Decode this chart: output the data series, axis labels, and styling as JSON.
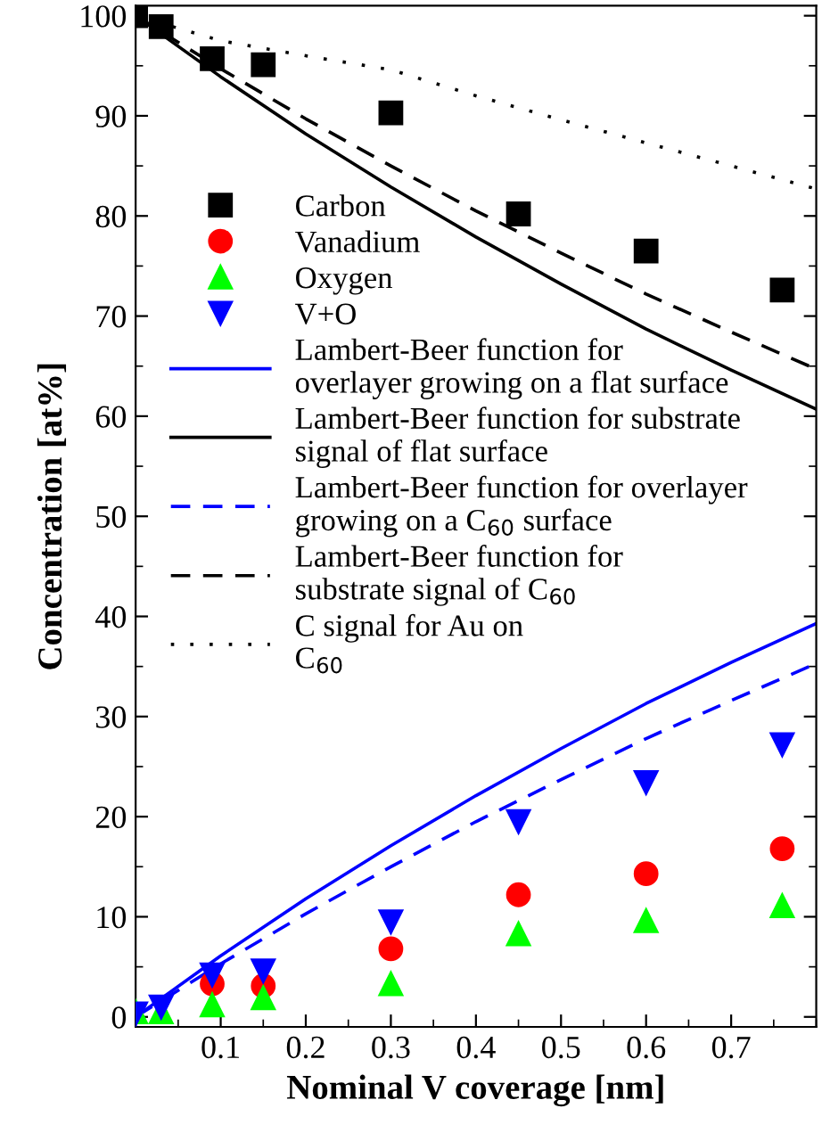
{
  "chart_data": {
    "type": "scatter",
    "xlabel": "Nominal V coverage [nm]",
    "ylabel": "Concentration [at%]",
    "xlim": [
      0,
      0.8
    ],
    "xticks": [
      {
        "value": 0,
        "label": null
      },
      0.1,
      0.2,
      0.3,
      0.4,
      0.5,
      0.6,
      0.7
    ],
    "ylim": [
      -1,
      101
    ],
    "yticks": [
      0,
      10,
      20,
      30,
      40,
      50,
      60,
      70,
      80,
      90,
      100
    ],
    "grid": false,
    "legend": "center left",
    "x": [
      0,
      0.03,
      0.09,
      0.15,
      0.3,
      0.45,
      0.6,
      0.76
    ],
    "series": [
      {
        "name": "Carbon",
        "color": "#000000",
        "marker": "square",
        "values": [
          100,
          98.9,
          95.7,
          95.1,
          90.3,
          80.2,
          76.5,
          72.6
        ]
      },
      {
        "name": "Vanadium",
        "color": "#ff0000",
        "marker": "circle",
        "values": [
          null,
          null,
          3.3,
          3.1,
          6.8,
          12.2,
          14.3,
          16.8
        ]
      },
      {
        "name": "Oxygen",
        "color": "#00ff00",
        "marker": "triangle",
        "values": [
          0.5,
          0.5,
          1.2,
          1.9,
          3.3,
          8.3,
          9.6,
          11.1
        ]
      },
      {
        "name": "V+O",
        "color": "#0000ff",
        "marker": "triangle_down",
        "values": [
          0.3,
          1.0,
          4.2,
          4.6,
          9.5,
          19.5,
          23.4,
          27.2
        ]
      },
      {
        "name": "Lambert-Beer function for\noverlayer growing on a flat surface",
        "type": "line",
        "color": "#0000ff",
        "line_style": "solid",
        "x": [
          0,
          0.1,
          0.2,
          0.3,
          0.4,
          0.5,
          0.6,
          0.7,
          0.8
        ],
        "values": [
          0,
          6.1,
          11.8,
          17.1,
          22.1,
          26.8,
          31.3,
          35.4,
          39.3
        ]
      },
      {
        "name": "Lambert-Beer function for substrate\nsignal of flat surface",
        "type": "line",
        "color": "#000000",
        "line_style": "solid",
        "x": [
          0,
          0.1,
          0.2,
          0.3,
          0.4,
          0.5,
          0.6,
          0.7,
          0.8
        ],
        "values": [
          100,
          93.9,
          88.2,
          82.9,
          77.9,
          73.2,
          68.7,
          64.6,
          60.7
        ]
      },
      {
        "name": "Lambert-Beer function for overlayer\ngrowing on a C$_{60}$ surface",
        "type": "line",
        "color": "#0000ff",
        "line_style": "dashed",
        "x": [
          0,
          0.1,
          0.2,
          0.3,
          0.4,
          0.5,
          0.6,
          0.7,
          0.8
        ],
        "values": [
          0,
          5.3,
          10.3,
          15.0,
          19.5,
          23.7,
          27.8,
          31.6,
          35.3
        ]
      },
      {
        "name": "Lambert-Beer function for\nsubstrate signal of C$_{60}$",
        "type": "line",
        "color": "#000000",
        "line_style": "dashed",
        "x": [
          0,
          0.1,
          0.2,
          0.3,
          0.4,
          0.5,
          0.6,
          0.7,
          0.8
        ],
        "values": [
          100,
          94.7,
          89.7,
          85.0,
          80.5,
          76.3,
          72.2,
          68.4,
          64.7
        ]
      },
      {
        "name": "C signal for Au on\nC$_{60}$",
        "type": "line",
        "color": "#000000",
        "line_style": "dotted",
        "x": [
          0,
          0.1,
          0.2,
          0.3,
          0.4,
          0.5,
          0.6,
          0.7,
          0.8
        ],
        "values": [
          100,
          97.5,
          96.0,
          94.6,
          92.0,
          89.6,
          87.3,
          85.0,
          82.7
        ]
      }
    ]
  }
}
